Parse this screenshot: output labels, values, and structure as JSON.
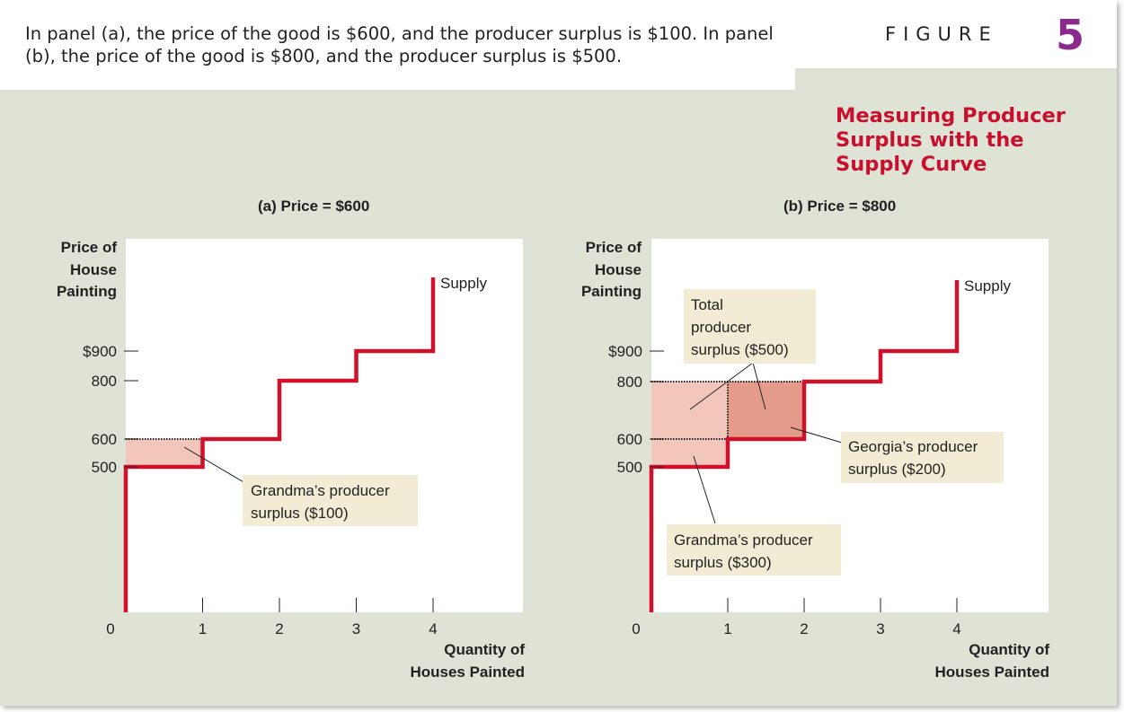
{
  "caption": "In panel (a), the price of the good is $600, and the producer surplus is $100. In panel (b), the price of the good is $800, and the producer surplus is $500.",
  "figure_label": "FIGURE",
  "figure_number": "5",
  "figure_title": "Measuring Producer Surplus with the Supply Curve",
  "colors": {
    "background": "#dfe3d5",
    "supply": "#d0112b",
    "surplus_light": "#f2c6bb",
    "surplus_dark": "#e59b8a",
    "callout": "#f3ecd5",
    "title_red": "#c8102e",
    "figure_purple": "#8b2a8c"
  },
  "chart_data": [
    {
      "type": "line",
      "panel": "(a) Price = $600",
      "xlabel": "Quantity of\nHouses Painted",
      "ylabel": "Price of\nHouse\nPainting",
      "x_ticks": [
        "0",
        "1",
        "2",
        "3",
        "4"
      ],
      "y_ticks": [
        "$900",
        "800",
        "600",
        "500"
      ],
      "series": [
        {
          "name": "Supply",
          "steps": [
            {
              "x": [
                0,
                1
              ],
              "y": 500
            },
            {
              "x": [
                1,
                2
              ],
              "y": 600
            },
            {
              "x": [
                2,
                3
              ],
              "y": 800
            },
            {
              "x": [
                3,
                4
              ],
              "y": 900
            }
          ]
        }
      ],
      "price": 600,
      "surplus": [
        {
          "label": "Grandma's producer surplus ($100)",
          "x": [
            0,
            1
          ],
          "y": [
            500,
            600
          ],
          "shade": "light"
        }
      ],
      "callouts": [
        {
          "text": "Grandma’s producer\nsurplus ($100)"
        }
      ]
    },
    {
      "type": "line",
      "panel": "(b) Price = $800",
      "xlabel": "Quantity of\nHouses Painted",
      "ylabel": "Price of\nHouse\nPainting",
      "x_ticks": [
        "0",
        "1",
        "2",
        "3",
        "4"
      ],
      "y_ticks": [
        "$900",
        "800",
        "600",
        "500"
      ],
      "series": [
        {
          "name": "Supply",
          "steps": [
            {
              "x": [
                0,
                1
              ],
              "y": 500
            },
            {
              "x": [
                1,
                2
              ],
              "y": 600
            },
            {
              "x": [
                2,
                3
              ],
              "y": 800
            },
            {
              "x": [
                3,
                4
              ],
              "y": 900
            }
          ]
        }
      ],
      "price": 800,
      "surplus": [
        {
          "label": "Grandma's producer surplus ($300)",
          "x": [
            0,
            1
          ],
          "y": [
            500,
            800
          ],
          "shade": "light"
        },
        {
          "label": "Georgia's producer surplus ($200)",
          "x": [
            1,
            2
          ],
          "y": [
            600,
            800
          ],
          "shade": "dark"
        }
      ],
      "callouts": [
        {
          "text": "Total\nproducer\nsurplus ($500)"
        },
        {
          "text": "Georgia’s producer\nsurplus ($200)"
        },
        {
          "text": "Grandma’s producer\nsurplus ($300)"
        }
      ]
    }
  ]
}
